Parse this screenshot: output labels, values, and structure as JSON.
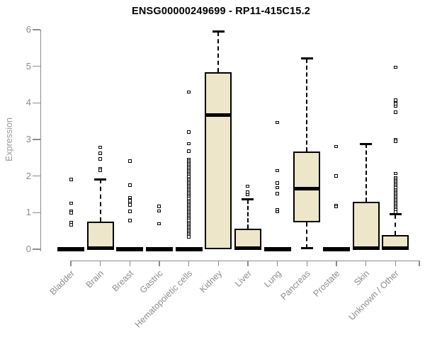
{
  "chart_data": {
    "type": "boxplot",
    "title": "ENSG00000249699 - RP11-415C15.2",
    "ylabel": "Expression",
    "xlabel": "",
    "ylim": [
      0,
      6
    ],
    "yticks": [
      0,
      1,
      2,
      3,
      4,
      5,
      6
    ],
    "grid": false,
    "legend": "none",
    "categories": [
      "Bladder",
      "Brain",
      "Breast",
      "Gastric",
      "Hematopoietic cells",
      "Kidney",
      "Liver",
      "Lung",
      "Pancreas",
      "Prostate",
      "Skin",
      "Unknown / Other"
    ],
    "series": [
      {
        "name": "Bladder",
        "q1": 0,
        "median": 0,
        "q3": 0,
        "whisker_low": null,
        "whisker_high": null,
        "outliers": [
          1.91,
          1.26,
          1.05,
          1.0,
          0.73,
          0.67
        ]
      },
      {
        "name": "Brain",
        "q1": 0,
        "median": 0.02,
        "q3": 0.75,
        "whisker_low": null,
        "whisker_high": 1.91,
        "outliers": [
          2.79,
          2.62,
          2.47,
          2.2,
          2.16
        ]
      },
      {
        "name": "Breast",
        "q1": 0,
        "median": 0,
        "q3": 0,
        "whisker_low": null,
        "whisker_high": null,
        "outliers": [
          2.41,
          1.75,
          1.41,
          1.33,
          1.26,
          1.21,
          1.04,
          0.78
        ]
      },
      {
        "name": "Gastric",
        "q1": 0,
        "median": 0,
        "q3": 0,
        "whisker_low": null,
        "whisker_high": null,
        "outliers": [
          1.17,
          1.05,
          0.7
        ]
      },
      {
        "name": "Hematopoietic cells",
        "q1": 0,
        "median": 0,
        "q3": 0,
        "whisker_low": null,
        "whisker_high": null,
        "outliers": [
          4.3,
          3.2,
          2.88,
          2.68,
          2.46,
          2.42,
          2.38,
          2.34,
          2.3,
          2.26,
          2.22,
          2.18,
          2.14,
          2.1,
          2.06,
          2.02,
          1.98,
          1.94,
          1.9,
          1.86,
          1.82,
          1.78,
          1.74,
          1.7,
          1.66,
          1.62,
          1.58,
          1.54,
          1.5,
          1.46,
          1.42,
          1.38,
          1.34,
          1.3,
          1.26,
          1.22,
          1.18,
          1.14,
          1.1,
          1.06,
          1.02,
          0.98,
          0.94,
          0.9,
          0.86,
          0.82,
          0.78,
          0.74,
          0.7,
          0.66,
          0.62,
          0.58,
          0.54,
          0.5,
          0.46,
          0.42,
          0.38,
          0.34
        ]
      },
      {
        "name": "Kidney",
        "q1": 0,
        "median": 3.67,
        "q3": 4.83,
        "whisker_low": null,
        "whisker_high": 5.95,
        "outliers": []
      },
      {
        "name": "Liver",
        "q1": 0,
        "median": 0.02,
        "q3": 0.57,
        "whisker_low": null,
        "whisker_high": 1.36,
        "outliers": [
          1.72,
          1.56,
          1.49
        ]
      },
      {
        "name": "Lung",
        "q1": 0,
        "median": 0,
        "q3": 0,
        "whisker_low": null,
        "whisker_high": null,
        "outliers": [
          3.46,
          2.15,
          1.81,
          1.68,
          1.52,
          1.07,
          1.03
        ]
      },
      {
        "name": "Pancreas",
        "q1": 0.73,
        "median": 1.66,
        "q3": 2.68,
        "whisker_low": 0.02,
        "whisker_high": 5.21,
        "outliers": []
      },
      {
        "name": "Prostate",
        "q1": 0,
        "median": 0,
        "q3": 0,
        "whisker_low": null,
        "whisker_high": null,
        "outliers": [
          2.81,
          2.0,
          1.2,
          1.16
        ]
      },
      {
        "name": "Skin",
        "q1": 0,
        "median": 0.02,
        "q3": 1.3,
        "whisker_low": null,
        "whisker_high": 2.88,
        "outliers": []
      },
      {
        "name": "Unknown / Other",
        "q1": 0,
        "median": 0.02,
        "q3": 0.38,
        "whisker_low": null,
        "whisker_high": 0.95,
        "outliers": [
          4.97,
          4.07,
          3.98,
          3.91,
          3.75,
          3.0,
          2.95,
          2.07,
          1.95,
          1.91,
          1.87,
          1.83,
          1.79,
          1.75,
          1.71,
          1.67,
          1.63,
          1.59,
          1.55,
          1.51,
          1.47,
          1.43,
          1.39,
          1.35,
          1.31,
          1.27,
          1.23,
          1.19,
          1.15,
          1.11,
          1.07,
          1.02
        ]
      }
    ],
    "colors": {
      "box_fill": "#ede6c8",
      "box_border": "#000000",
      "median": "#000000",
      "whisker": "#000000",
      "outlier_border": "#000000",
      "outlier_fill": "#ffffff",
      "axis": "#8c8c8c",
      "tick_label": "#8c8c8c",
      "axis_label": "#9a9a9a",
      "title": "#000000",
      "background": "#ffffff"
    }
  }
}
